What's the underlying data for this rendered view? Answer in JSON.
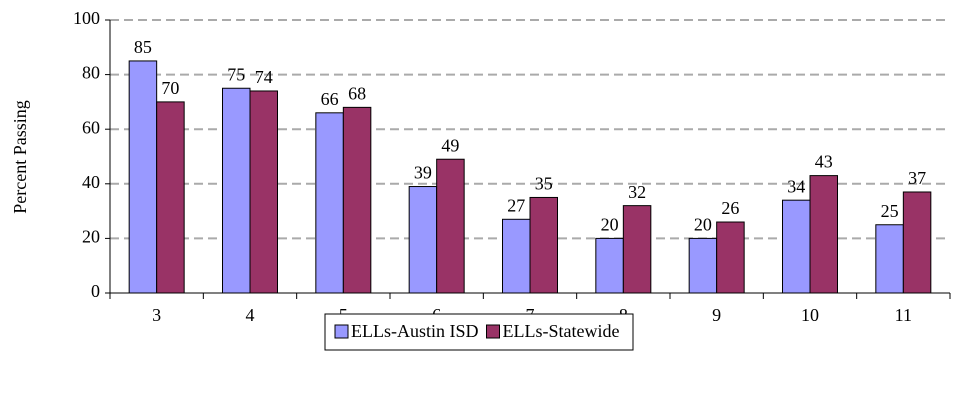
{
  "chart_data": {
    "type": "bar",
    "ylabel": "Percent Passing",
    "categories": [
      "3",
      "4",
      "5",
      "6",
      "7",
      "8",
      "9",
      "10",
      "11"
    ],
    "series": [
      {
        "name": "ELLs-Austin ISD",
        "color": "#9999ff",
        "values": [
          85,
          75,
          66,
          39,
          27,
          20,
          20,
          34,
          25
        ]
      },
      {
        "name": "ELLs-Statewide",
        "color": "#993366",
        "values": [
          70,
          74,
          68,
          49,
          35,
          32,
          26,
          43,
          37
        ]
      }
    ],
    "ylim": [
      0,
      100
    ],
    "yticks": [
      0,
      20,
      40,
      60,
      80,
      100
    ],
    "grid": true,
    "legend": "bottom"
  }
}
